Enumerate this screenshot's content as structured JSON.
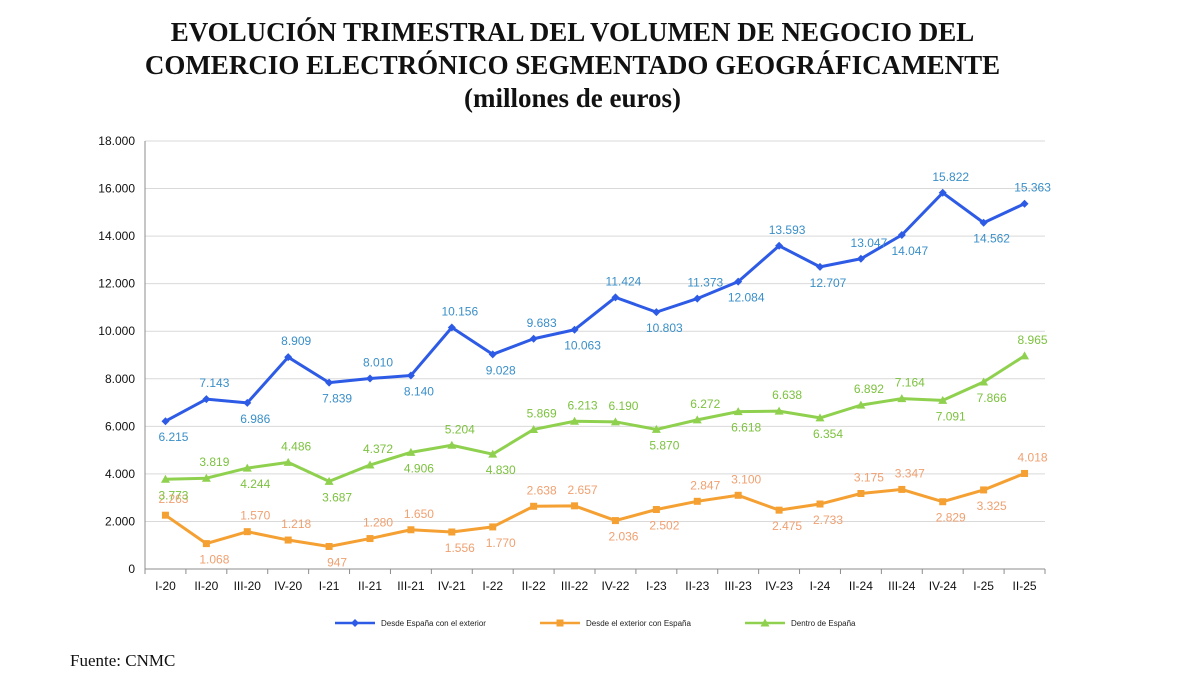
{
  "title": {
    "line1": "EVOLUCIÓN TRIMESTRAL DEL VOLUMEN DE NEGOCIO DEL",
    "line2": "COMERCIO ELECTRÓNICO SEGMENTADO GEOGRÁFICAMENTE",
    "line3": "(millones de euros)"
  },
  "source": "Fuente: CNMC",
  "chart_data": {
    "type": "line",
    "title": "EVOLUCIÓN TRIMESTRAL DEL VOLUMEN DE NEGOCIO DEL COMERCIO ELECTRÓNICO SEGMENTADO GEOGRÁFICAMENTE (millones de euros)",
    "xlabel": "",
    "ylabel": "",
    "ylim": [
      0,
      18000
    ],
    "yticks": [
      "0",
      "2.000",
      "4.000",
      "6.000",
      "8.000",
      "10.000",
      "12.000",
      "14.000",
      "16.000",
      "18.000"
    ],
    "yticks_values": [
      0,
      2000,
      4000,
      6000,
      8000,
      10000,
      12000,
      14000,
      16000,
      18000
    ],
    "grid": true,
    "legend_position": "bottom",
    "categories": [
      "I-20",
      "II-20",
      "III-20",
      "IV-20",
      "I-21",
      "II-21",
      "III-21",
      "IV-21",
      "I-22",
      "II-22",
      "III-22",
      "IV-22",
      "I-23",
      "II-23",
      "III-23",
      "IV-23",
      "I-24",
      "II-24",
      "III-24",
      "IV-24",
      "I-25",
      "II-25"
    ],
    "series": [
      {
        "name": "Desde España con el exterior",
        "color": "#2E5BE6",
        "label_color": "#3A8FC8",
        "marker": "diamond",
        "values": [
          6215,
          7143,
          6986,
          8909,
          7839,
          8010,
          8140,
          10156,
          9028,
          9683,
          10063,
          11424,
          10803,
          11373,
          12084,
          13593,
          12707,
          13047,
          14047,
          15822,
          14562,
          15363
        ],
        "labels": [
          "6.215",
          "7.143",
          "6.986",
          "8.909",
          "7.839",
          "8.010",
          "8.140",
          "10.156",
          "9.028",
          "9.683",
          "10.063",
          "11.424",
          "10.803",
          "11.373",
          "12.084",
          "13.593",
          "12.707",
          "13.047",
          "14.047",
          "15.822",
          "14.562",
          "15.363"
        ]
      },
      {
        "name": "Desde el exterior con España",
        "color": "#F5A033",
        "label_color": "#F0A070",
        "marker": "square",
        "values": [
          2263,
          1068,
          1570,
          1218,
          947,
          1280,
          1650,
          1556,
          1770,
          2638,
          2657,
          2036,
          2502,
          2847,
          3100,
          2475,
          2733,
          3175,
          3347,
          2829,
          3325,
          4018
        ],
        "labels": [
          "2.263",
          "1.068",
          "1.570",
          "1.218",
          "947",
          "1.280",
          "1.650",
          "1.556",
          "1.770",
          "2.638",
          "2.657",
          "2.036",
          "2.502",
          "2.847",
          "3.100",
          "2.475",
          "2.733",
          "3.175",
          "3.347",
          "2.829",
          "3.325",
          "4.018"
        ]
      },
      {
        "name": "Dentro de España",
        "color": "#8FD14F",
        "label_color": "#7CC23F",
        "marker": "triangle",
        "values": [
          3773,
          3819,
          4244,
          4486,
          3687,
          4372,
          4906,
          5204,
          4830,
          5869,
          6213,
          6190,
          5870,
          6272,
          6618,
          6638,
          6354,
          6892,
          7164,
          7091,
          7866,
          8965
        ],
        "labels": [
          "3.773",
          "3.819",
          "4.244",
          "4.486",
          "3.687",
          "4.372",
          "4.906",
          "5.204",
          "4.830",
          "5.869",
          "6.213",
          "6.190",
          "5.870",
          "6.272",
          "6.618",
          "6.638",
          "6.354",
          "6.892",
          "7.164",
          "7.091",
          "7.866",
          "8.965"
        ]
      }
    ]
  }
}
